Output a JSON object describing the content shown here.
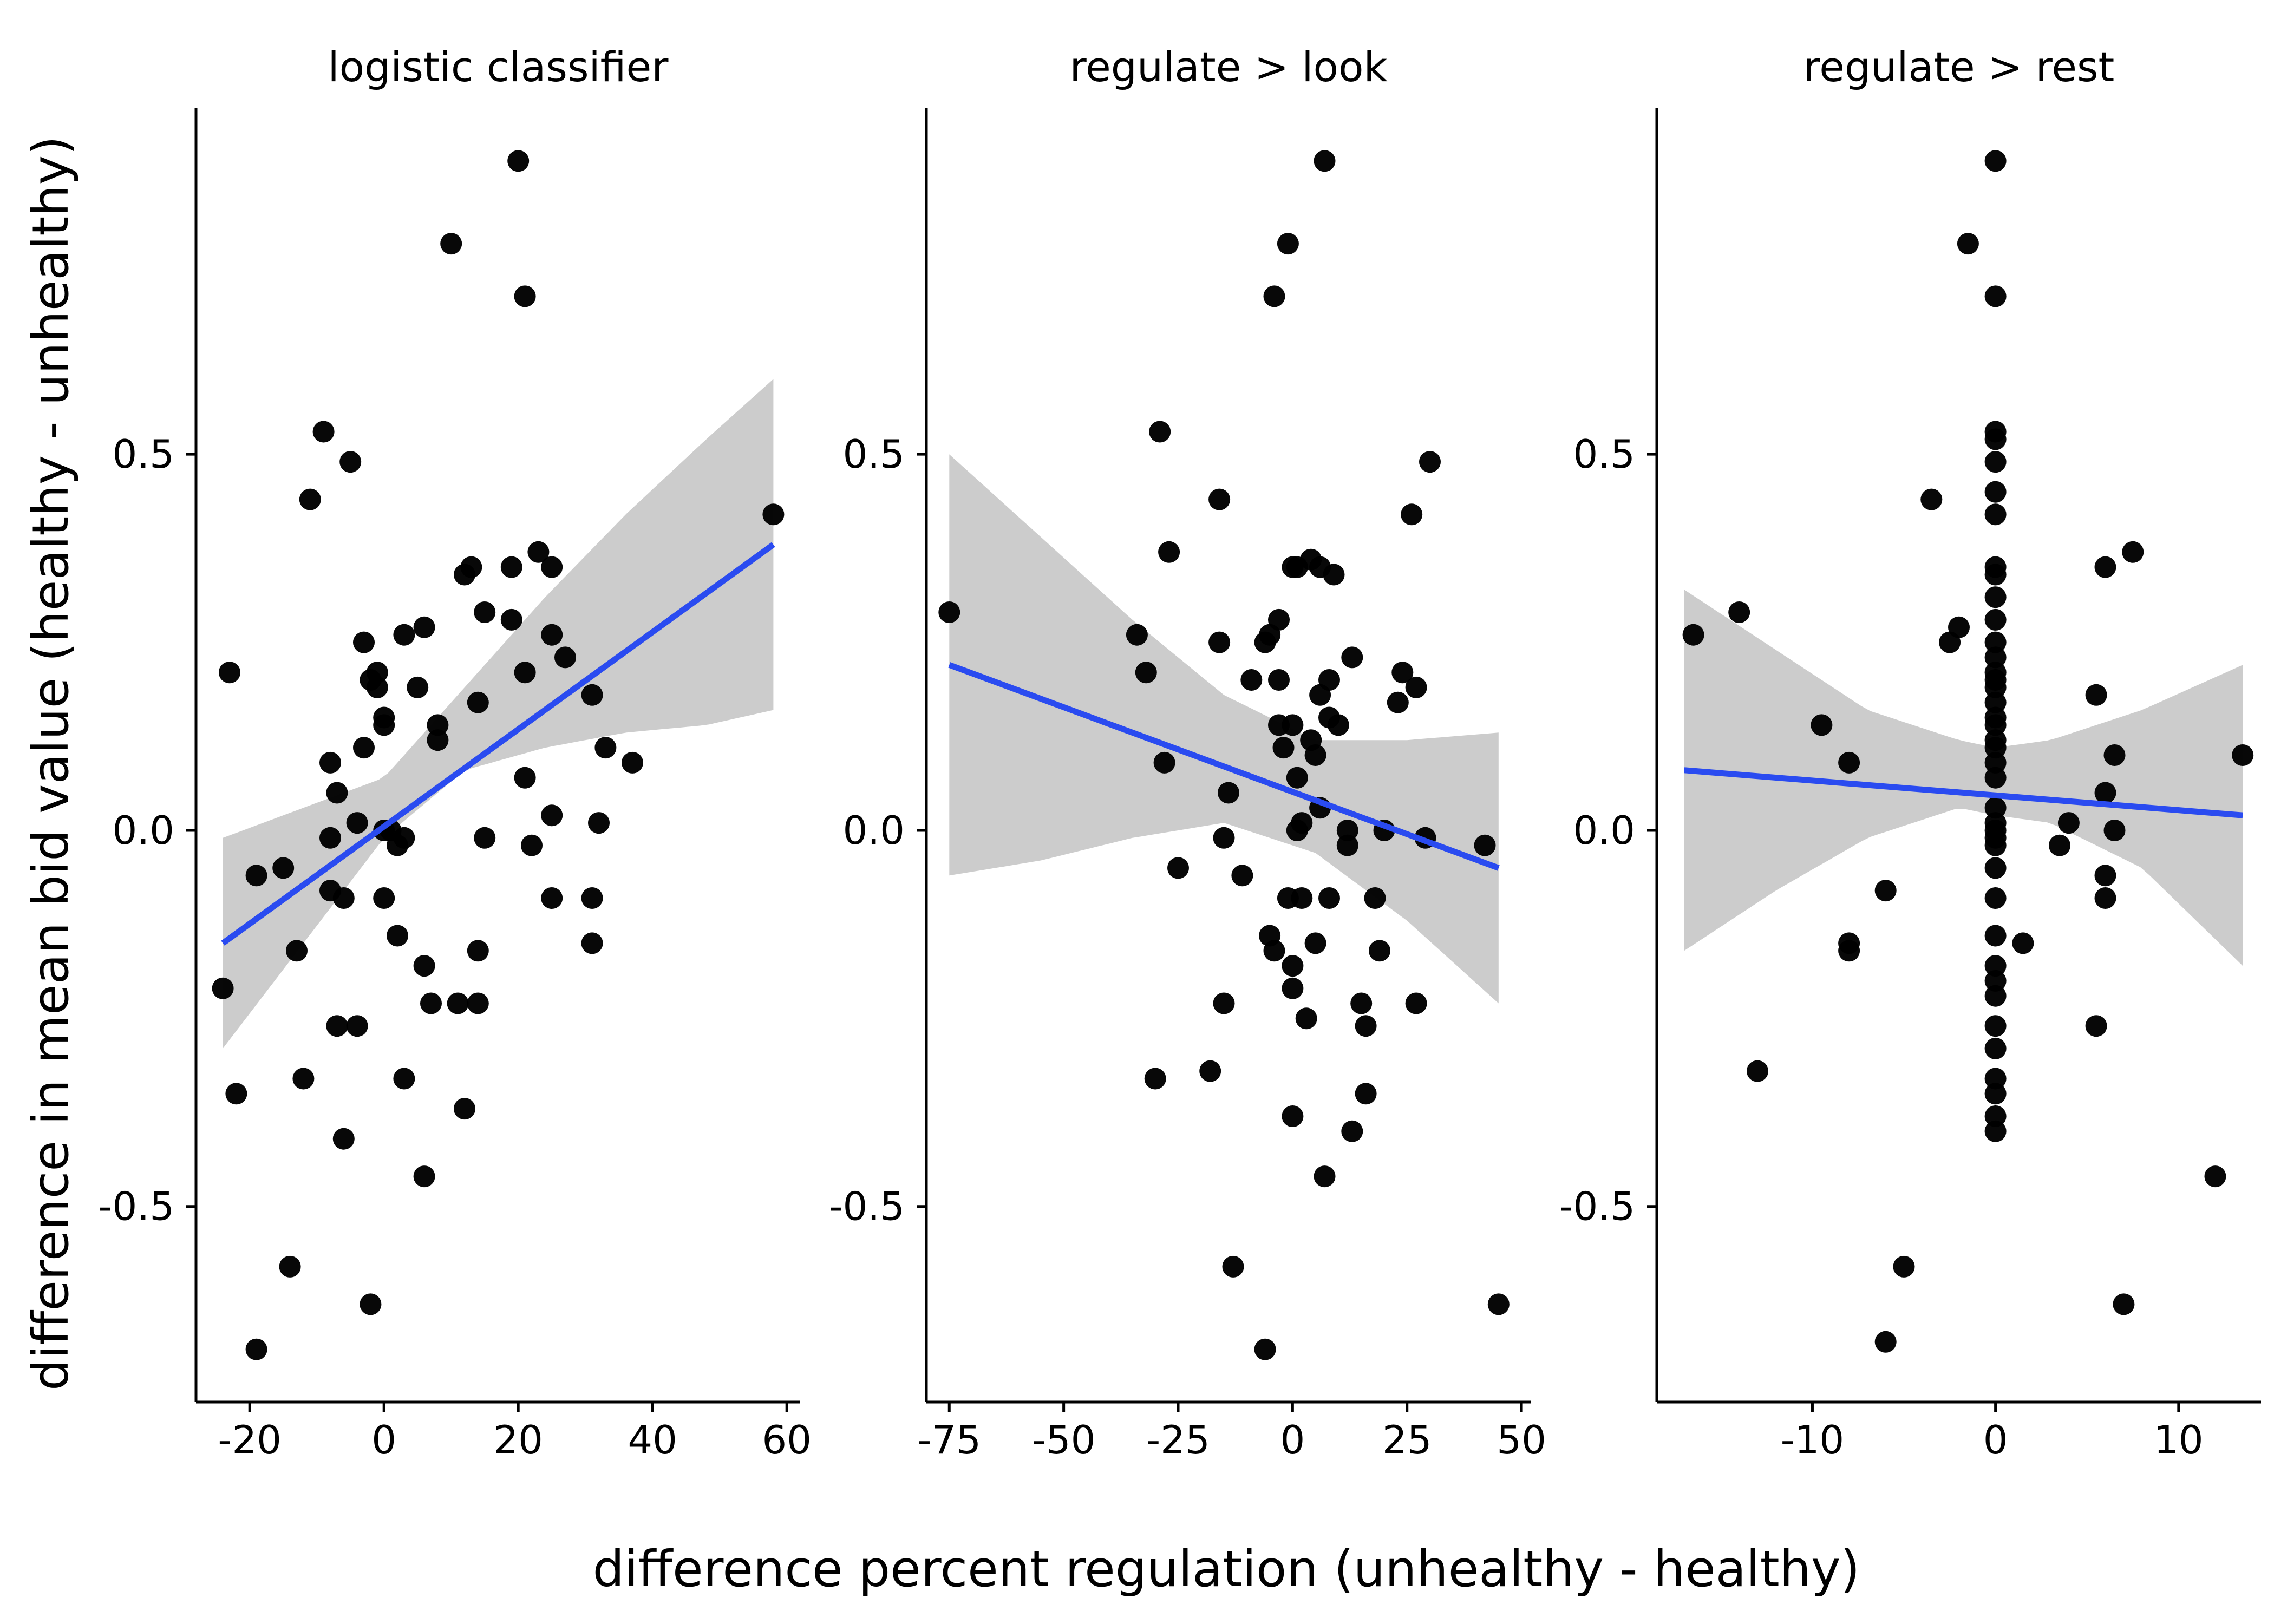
{
  "chart_data": {
    "type": "scatter",
    "ylabel": "difference in mean bid value (healthy - unhealthy)",
    "xlabel": "difference percent regulation (unhealthy - healthy)",
    "ylim": [
      -0.76,
      0.96
    ],
    "yticks": [
      -0.5,
      0.0,
      0.5
    ],
    "ytick_labels": [
      "-0.5",
      "0.0",
      "0.5"
    ],
    "grid": false,
    "colors": {
      "points": "#000000",
      "fit_line": "#2a4bf0",
      "confidence_band": "#cccccc"
    },
    "panels": [
      {
        "title": "logistic classifier",
        "xlim": [
          -28,
          62
        ],
        "xticks": [
          -20,
          0,
          20,
          40,
          60
        ],
        "xtick_labels": [
          "-20",
          "0",
          "20",
          "40",
          "60"
        ],
        "fit": {
          "x": [
            -24,
            58
          ],
          "y": [
            -0.15,
            0.38
          ]
        },
        "band": {
          "x": [
            -24,
            -12,
            0,
            12,
            24,
            36,
            48,
            58
          ],
          "lower": [
            -0.29,
            -0.15,
            -0.01,
            0.08,
            0.11,
            0.13,
            0.14,
            0.16
          ],
          "upper": [
            -0.01,
            0.03,
            0.07,
            0.19,
            0.31,
            0.42,
            0.52,
            0.6
          ]
        },
        "points": [
          [
            -23,
            0.21
          ],
          [
            -24,
            -0.21
          ],
          [
            -22,
            -0.35
          ],
          [
            -19,
            -0.69
          ],
          [
            -19,
            -0.06
          ],
          [
            -15,
            -0.05
          ],
          [
            -14,
            -0.58
          ],
          [
            -13,
            -0.16
          ],
          [
            -12,
            -0.33
          ],
          [
            -11,
            0.44
          ],
          [
            -9,
            0.53
          ],
          [
            -8,
            0.09
          ],
          [
            -8,
            -0.01
          ],
          [
            -8,
            -0.08
          ],
          [
            -7,
            -0.26
          ],
          [
            -7,
            0.05
          ],
          [
            -6,
            -0.41
          ],
          [
            -6,
            -0.09
          ],
          [
            -5,
            0.49
          ],
          [
            -4,
            0.01
          ],
          [
            -4,
            -0.26
          ],
          [
            -3,
            0.11
          ],
          [
            -3,
            0.25
          ],
          [
            -2,
            -0.63
          ],
          [
            -2,
            0.2
          ],
          [
            -1,
            0.21
          ],
          [
            -1,
            0.19
          ],
          [
            0,
            0.15
          ],
          [
            0,
            0.14
          ],
          [
            0,
            0.0
          ],
          [
            0,
            -0.09
          ],
          [
            1,
            0.0
          ],
          [
            2,
            -0.02
          ],
          [
            2,
            -0.14
          ],
          [
            3,
            -0.33
          ],
          [
            3,
            0.26
          ],
          [
            3,
            -0.01
          ],
          [
            5,
            0.19
          ],
          [
            6,
            0.27
          ],
          [
            6,
            -0.18
          ],
          [
            6,
            -0.46
          ],
          [
            7,
            -0.23
          ],
          [
            8,
            0.12
          ],
          [
            8,
            0.14
          ],
          [
            10,
            0.78
          ],
          [
            11,
            -0.23
          ],
          [
            12,
            0.34
          ],
          [
            12,
            -0.37
          ],
          [
            13,
            0.35
          ],
          [
            14,
            -0.23
          ],
          [
            14,
            0.17
          ],
          [
            14,
            -0.16
          ],
          [
            15,
            0.29
          ],
          [
            15,
            -0.01
          ],
          [
            19,
            0.35
          ],
          [
            19,
            0.28
          ],
          [
            20,
            0.89
          ],
          [
            21,
            0.07
          ],
          [
            21,
            0.71
          ],
          [
            21,
            0.21
          ],
          [
            22,
            -0.02
          ],
          [
            23,
            0.37
          ],
          [
            25,
            0.26
          ],
          [
            25,
            0.35
          ],
          [
            25,
            0.02
          ],
          [
            25,
            -0.09
          ],
          [
            27,
            0.23
          ],
          [
            31,
            0.18
          ],
          [
            31,
            -0.09
          ],
          [
            31,
            -0.15
          ],
          [
            32,
            0.01
          ],
          [
            33,
            0.11
          ],
          [
            37,
            0.09
          ],
          [
            58,
            0.42
          ]
        ]
      },
      {
        "title": "regulate > look",
        "xlim": [
          -80,
          52
        ],
        "xticks": [
          -75,
          -50,
          -25,
          0,
          25,
          50
        ],
        "xtick_labels": [
          "-75",
          "-50",
          "-25",
          "0",
          "25",
          "50"
        ],
        "fit": {
          "x": [
            -75,
            45
          ],
          "y": [
            0.22,
            -0.05
          ]
        },
        "band": {
          "x": [
            -75,
            -55,
            -35,
            -15,
            5,
            25,
            45
          ],
          "lower": [
            -0.06,
            -0.04,
            -0.01,
            0.01,
            -0.03,
            -0.12,
            -0.23
          ],
          "upper": [
            0.5,
            0.39,
            0.28,
            0.18,
            0.12,
            0.12,
            0.13
          ]
        },
        "points": [
          [
            -75,
            0.29
          ],
          [
            -34,
            0.26
          ],
          [
            -32,
            0.21
          ],
          [
            -30,
            -0.33
          ],
          [
            -29,
            0.53
          ],
          [
            -28,
            0.09
          ],
          [
            -27,
            0.37
          ],
          [
            -25,
            -0.05
          ],
          [
            -18,
            -0.32
          ],
          [
            -16,
            0.44
          ],
          [
            -16,
            0.25
          ],
          [
            -15,
            -0.23
          ],
          [
            -15,
            -0.01
          ],
          [
            -14,
            0.05
          ],
          [
            -13,
            -0.58
          ],
          [
            -11,
            -0.06
          ],
          [
            -9,
            0.2
          ],
          [
            -6,
            -0.69
          ],
          [
            -6,
            0.25
          ],
          [
            -5,
            0.26
          ],
          [
            -5,
            -0.14
          ],
          [
            -4,
            0.71
          ],
          [
            -4,
            -0.16
          ],
          [
            -3,
            0.28
          ],
          [
            -3,
            0.14
          ],
          [
            -3,
            0.2
          ],
          [
            -2,
            0.11
          ],
          [
            -1,
            0.78
          ],
          [
            -1,
            -0.09
          ],
          [
            0,
            0.14
          ],
          [
            0,
            -0.38
          ],
          [
            0,
            -0.21
          ],
          [
            0,
            -0.18
          ],
          [
            0,
            0.35
          ],
          [
            1,
            0.07
          ],
          [
            1,
            0.0
          ],
          [
            1,
            0.35
          ],
          [
            2,
            0.01
          ],
          [
            2,
            -0.09
          ],
          [
            3,
            -0.25
          ],
          [
            4,
            0.36
          ],
          [
            4,
            0.12
          ],
          [
            5,
            -0.15
          ],
          [
            5,
            0.1
          ],
          [
            6,
            0.03
          ],
          [
            6,
            0.35
          ],
          [
            6,
            0.18
          ],
          [
            7,
            0.89
          ],
          [
            7,
            -0.46
          ],
          [
            8,
            0.2
          ],
          [
            8,
            0.15
          ],
          [
            8,
            -0.09
          ],
          [
            9,
            0.34
          ],
          [
            10,
            0.14
          ],
          [
            12,
            0.0
          ],
          [
            12,
            -0.02
          ],
          [
            13,
            -0.4
          ],
          [
            13,
            0.23
          ],
          [
            15,
            -0.23
          ],
          [
            16,
            -0.35
          ],
          [
            16,
            -0.26
          ],
          [
            18,
            -0.09
          ],
          [
            19,
            -0.16
          ],
          [
            20,
            0.0
          ],
          [
            23,
            0.17
          ],
          [
            24,
            0.21
          ],
          [
            26,
            0.42
          ],
          [
            27,
            0.19
          ],
          [
            27,
            -0.23
          ],
          [
            29,
            -0.01
          ],
          [
            30,
            0.49
          ],
          [
            42,
            -0.02
          ],
          [
            45,
            -0.63
          ]
        ]
      },
      {
        "title": "regulate > rest",
        "xlim": [
          -18.5,
          14.5
        ],
        "xticks": [
          -10,
          0,
          10
        ],
        "xtick_labels": [
          "-10",
          "0",
          "10"
        ],
        "fit": {
          "x": [
            -17,
            13.5
          ],
          "y": [
            0.08,
            0.02
          ]
        },
        "band": {
          "x": [
            -17,
            -12,
            -7,
            -2,
            0,
            3,
            8,
            13.5
          ],
          "lower": [
            -0.16,
            -0.08,
            -0.01,
            0.03,
            0.02,
            0.01,
            -0.05,
            -0.18
          ],
          "upper": [
            0.32,
            0.24,
            0.16,
            0.12,
            0.11,
            0.12,
            0.16,
            0.22
          ]
        },
        "points": [
          [
            -16.5,
            0.26
          ],
          [
            -14,
            0.29
          ],
          [
            -13,
            -0.32
          ],
          [
            -9.5,
            0.14
          ],
          [
            -8,
            0.09
          ],
          [
            -8,
            -0.15
          ],
          [
            -8,
            -0.16
          ],
          [
            -6,
            -0.08
          ],
          [
            -6,
            -0.68
          ],
          [
            -5,
            -0.58
          ],
          [
            -3.5,
            0.44
          ],
          [
            -2.5,
            0.25
          ],
          [
            -2,
            0.27
          ],
          [
            -1.5,
            0.78
          ],
          [
            0,
            0.89
          ],
          [
            0,
            0.71
          ],
          [
            0,
            0.53
          ],
          [
            0,
            0.52
          ],
          [
            0,
            0.49
          ],
          [
            0,
            0.45
          ],
          [
            0,
            0.42
          ],
          [
            0,
            0.35
          ],
          [
            0,
            0.34
          ],
          [
            0,
            0.31
          ],
          [
            0,
            0.28
          ],
          [
            0,
            0.25
          ],
          [
            0,
            0.23
          ],
          [
            0,
            0.21
          ],
          [
            0,
            0.2
          ],
          [
            0,
            0.19
          ],
          [
            0,
            0.17
          ],
          [
            0,
            0.15
          ],
          [
            0,
            0.14
          ],
          [
            0,
            0.12
          ],
          [
            0,
            0.11
          ],
          [
            0,
            0.09
          ],
          [
            0,
            0.07
          ],
          [
            0,
            0.03
          ],
          [
            0,
            0.01
          ],
          [
            0,
            0.0
          ],
          [
            0,
            -0.01
          ],
          [
            0,
            -0.02
          ],
          [
            0,
            -0.05
          ],
          [
            0,
            -0.09
          ],
          [
            0,
            -0.14
          ],
          [
            0,
            -0.18
          ],
          [
            0,
            -0.2
          ],
          [
            0,
            -0.22
          ],
          [
            0,
            -0.26
          ],
          [
            0,
            -0.29
          ],
          [
            0,
            -0.33
          ],
          [
            0,
            -0.35
          ],
          [
            0,
            -0.38
          ],
          [
            0,
            -0.4
          ],
          [
            1.5,
            -0.15
          ],
          [
            3.5,
            -0.02
          ],
          [
            4,
            0.01
          ],
          [
            5.5,
            0.18
          ],
          [
            5.5,
            -0.26
          ],
          [
            6,
            0.05
          ],
          [
            6,
            -0.06
          ],
          [
            6,
            -0.09
          ],
          [
            6,
            0.35
          ],
          [
            6.5,
            0.0
          ],
          [
            6.5,
            0.1
          ],
          [
            7,
            -0.63
          ],
          [
            7.5,
            0.37
          ],
          [
            12,
            -0.46
          ],
          [
            13.5,
            0.1
          ]
        ]
      }
    ]
  }
}
